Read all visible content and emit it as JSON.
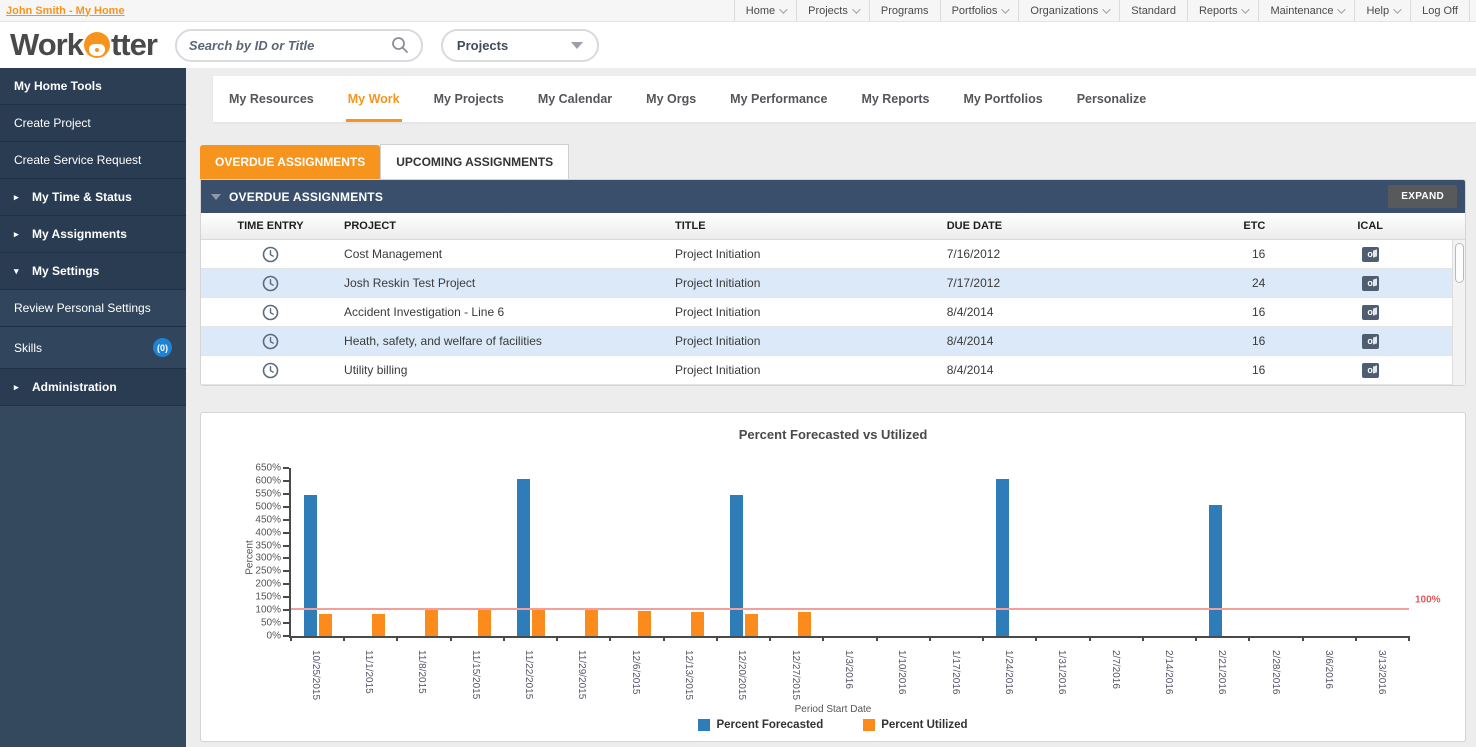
{
  "colors": {
    "accent_orange": "#f7941e",
    "navy_header": "#3a4f6c",
    "sidebar_navy": "#35495e",
    "alt_row_blue": "#dbe9f9",
    "bar_blue": "#2e7cb8",
    "bar_orange": "#fc8b1e",
    "threshold_red": "#f2a09e"
  },
  "top_bar": {
    "user_link": "John Smith - My Home",
    "nav": [
      {
        "label": "Home",
        "caret": true
      },
      {
        "label": "Projects",
        "caret": true
      },
      {
        "label": "Programs",
        "caret": false
      },
      {
        "label": "Portfolios",
        "caret": true
      },
      {
        "label": "Organizations",
        "caret": true
      },
      {
        "label": "Standard",
        "caret": false
      },
      {
        "label": "Reports",
        "caret": true
      },
      {
        "label": "Maintenance",
        "caret": true
      },
      {
        "label": "Help",
        "caret": true
      },
      {
        "label": "Log Off",
        "caret": false
      }
    ]
  },
  "header": {
    "logo_prefix": "Work",
    "logo_suffix": "tter",
    "search_placeholder": "Search by ID or Title",
    "entity_selected": "Projects"
  },
  "sidebar": {
    "title": "My Home Tools",
    "items": [
      {
        "label": "Create Project",
        "type": "link"
      },
      {
        "label": "Create Service Request",
        "type": "link"
      },
      {
        "label": "My Time & Status",
        "type": "group",
        "arrow": "right"
      },
      {
        "label": "My Assignments",
        "type": "group",
        "arrow": "right"
      },
      {
        "label": "My Settings",
        "type": "group",
        "arrow": "down"
      },
      {
        "label": "Review Personal Settings",
        "type": "sub"
      },
      {
        "label": "Skills",
        "type": "sub",
        "badge": "(0)"
      },
      {
        "label": "Administration",
        "type": "group",
        "arrow": "right"
      }
    ]
  },
  "main_tabs": [
    {
      "label": "My Resources",
      "active": false
    },
    {
      "label": "My Work",
      "active": true
    },
    {
      "label": "My Projects",
      "active": false
    },
    {
      "label": "My Calendar",
      "active": false
    },
    {
      "label": "My Orgs",
      "active": false
    },
    {
      "label": "My Performance",
      "active": false
    },
    {
      "label": "My Reports",
      "active": false
    },
    {
      "label": "My Portfolios",
      "active": false
    },
    {
      "label": "Personalize",
      "active": false
    }
  ],
  "assignments": {
    "tab_overdue": "OVERDUE ASSIGNMENTS",
    "tab_upcoming": "UPCOMING ASSIGNMENTS",
    "panel_title": "OVERDUE ASSIGNMENTS",
    "expand_label": "EXPAND",
    "columns": [
      "TIME ENTRY",
      "PROJECT",
      "TITLE",
      "DUE DATE",
      "ETC",
      "ICAL"
    ],
    "rows": [
      {
        "project": "Cost Management",
        "title": "Project Initiation",
        "due_date": "7/16/2012",
        "etc": "16"
      },
      {
        "project": "Josh Reskin Test Project",
        "title": "Project Initiation",
        "due_date": "7/17/2012",
        "etc": "24"
      },
      {
        "project": "Accident Investigation - Line 6",
        "title": "Project Initiation",
        "due_date": "8/4/2014",
        "etc": "16"
      },
      {
        "project": "Heath, safety, and welfare of facilities",
        "title": "Project Initiation",
        "due_date": "8/4/2014",
        "etc": "16"
      },
      {
        "project": "Utility billing",
        "title": "Project Initiation",
        "due_date": "8/4/2014",
        "etc": "16"
      }
    ]
  },
  "chart_data": {
    "type": "bar",
    "title": "Percent Forecasted vs Utilized",
    "xlabel": "Period Start Date",
    "ylabel": "Percent",
    "ylim": [
      0,
      650
    ],
    "ytick_step": 50,
    "ytick_suffix": "%",
    "legend_position": "bottom",
    "grid": false,
    "threshold": {
      "value": 100,
      "label": "100%"
    },
    "categories": [
      "10/25/2015",
      "11/1/2015",
      "11/8/2015",
      "11/15/2015",
      "11/22/2015",
      "11/29/2015",
      "12/6/2015",
      "12/13/2015",
      "12/20/2015",
      "12/27/2015",
      "1/3/2016",
      "1/10/2016",
      "1/17/2016",
      "1/24/2016",
      "1/31/2016",
      "2/7/2016",
      "2/14/2016",
      "2/21/2016",
      "2/28/2016",
      "3/6/2016",
      "3/13/2016"
    ],
    "series": [
      {
        "name": "Percent Forecasted",
        "color": "#2e7cb8",
        "values": [
          540,
          0,
          0,
          0,
          600,
          0,
          0,
          0,
          540,
          0,
          0,
          0,
          0,
          600,
          0,
          0,
          0,
          500,
          0,
          0,
          0
        ]
      },
      {
        "name": "Percent Utilized",
        "color": "#fc8b1e",
        "values": [
          85,
          85,
          105,
          100,
          105,
          100,
          95,
          90,
          85,
          90,
          0,
          0,
          0,
          0,
          0,
          0,
          0,
          0,
          0,
          0,
          0
        ]
      }
    ]
  }
}
